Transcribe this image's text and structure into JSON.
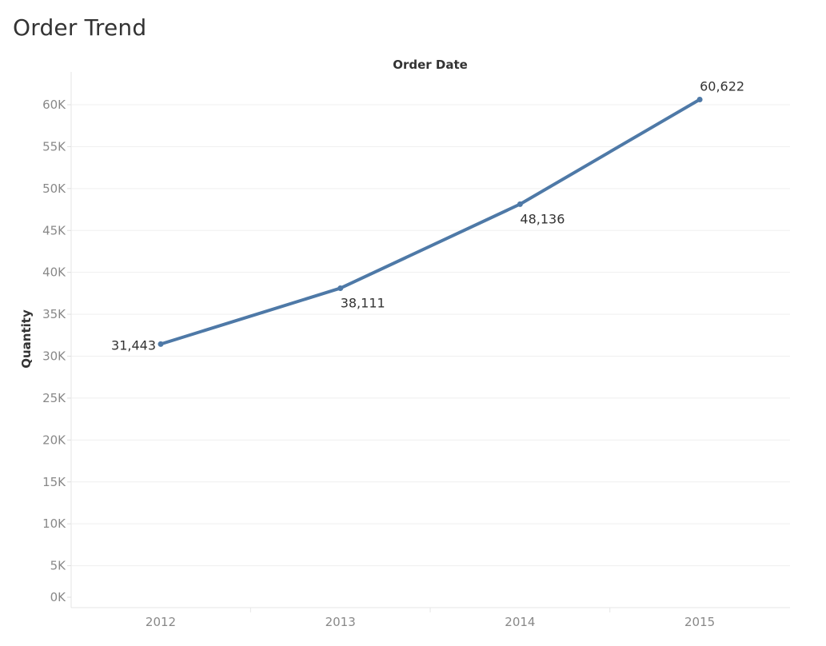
{
  "sheet": {
    "title": "Order Trend"
  },
  "chart_data": {
    "type": "line",
    "title": "Order Trend",
    "xlabel": "Order Date",
    "ylabel": "Quantity",
    "categories": [
      "2012",
      "2013",
      "2014",
      "2015"
    ],
    "series": [
      {
        "values": [
          31443,
          38111,
          48136,
          60622
        ],
        "value_labels": [
          "31,443",
          "38,111",
          "48,136",
          "60,622"
        ],
        "color": "#4e79a7"
      }
    ],
    "ylim": [
      0,
      65000
    ],
    "yticks": [
      0,
      5000,
      10000,
      15000,
      20000,
      25000,
      30000,
      35000,
      40000,
      45000,
      50000,
      55000,
      60000
    ],
    "ytick_labels": [
      "0K",
      "5K",
      "10K",
      "15K",
      "20K",
      "25K",
      "30K",
      "35K",
      "40K",
      "45K",
      "50K",
      "55K",
      "60K"
    ],
    "grid": true,
    "legend": "none"
  }
}
